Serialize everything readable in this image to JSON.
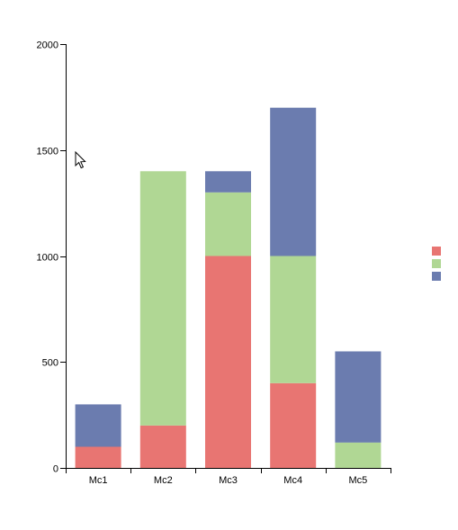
{
  "chart_data": {
    "type": "bar",
    "stacked": true,
    "categories": [
      "Mc1",
      "Mc2",
      "Mc3",
      "Mc4",
      "Mc5"
    ],
    "series": [
      {
        "color": "#e87572",
        "values": [
          100,
          200,
          1000,
          400,
          0
        ]
      },
      {
        "color": "#b0d794",
        "values": [
          0,
          1200,
          300,
          600,
          120
        ]
      },
      {
        "color": "#6b7caf",
        "values": [
          200,
          0,
          100,
          700,
          430
        ]
      }
    ],
    "ylim": [
      0,
      2000
    ],
    "yticks": [
      0,
      500,
      1000,
      1500,
      2000
    ],
    "grid": false,
    "legend_position": "right"
  },
  "cursor": {
    "icon": "mouse-pointer-icon"
  }
}
